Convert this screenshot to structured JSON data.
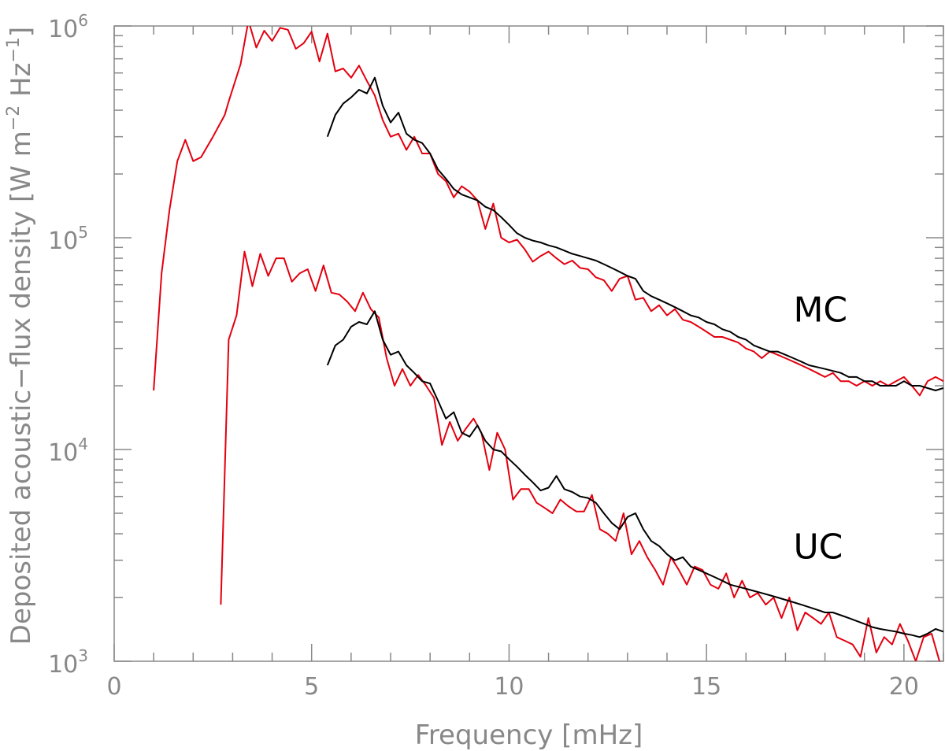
{
  "chart_data": {
    "type": "line",
    "title": "",
    "xlabel": "Frequency [mHz]",
    "ylabel_parts": [
      "Deposited acoustic−flux density [W m",
      "−2",
      " Hz",
      "−1",
      "]"
    ],
    "xlim": [
      0,
      21
    ],
    "ylim": [
      1000,
      1000000
    ],
    "yscale": "log",
    "grid": false,
    "x_ticks": [
      0,
      5,
      10,
      15,
      20
    ],
    "x_tick_labels": [
      "0",
      "5",
      "10",
      "15",
      "20"
    ],
    "y_ticks": [
      1000,
      10000,
      100000,
      1000000
    ],
    "y_tick_labels": [
      {
        "base": "10",
        "exp": "3"
      },
      {
        "base": "10",
        "exp": "4"
      },
      {
        "base": "10",
        "exp": "5"
      },
      {
        "base": "10",
        "exp": "6"
      }
    ],
    "annotations": [
      {
        "text": "MC",
        "x": 17.2,
        "y": 46000
      },
      {
        "text": "UC",
        "x": 17.2,
        "y": 3500
      }
    ],
    "colors": {
      "red": "#e3000f",
      "black": "#000000"
    },
    "series": [
      {
        "color": "#e3000f",
        "x": [
          1.0,
          1.2,
          1.4,
          1.6,
          1.8,
          2.0,
          2.2,
          2.5,
          2.8,
          2.9,
          3.2,
          3.4,
          3.6,
          3.8,
          4.0,
          4.2,
          4.4,
          4.6,
          4.8,
          5.0,
          5.2,
          5.4,
          5.6,
          5.8,
          6.0,
          6.2,
          6.4,
          6.6,
          6.8,
          7.0,
          7.2,
          7.4,
          7.6,
          7.8,
          8.0,
          8.2,
          8.4,
          8.6,
          8.8,
          9.0,
          9.2,
          9.4,
          9.6,
          9.8,
          10.0,
          10.2,
          10.4,
          10.6,
          10.8,
          11.0,
          11.2,
          11.4,
          11.6,
          11.8,
          12.0,
          12.2,
          12.4,
          12.6,
          12.8,
          13.0,
          13.2,
          13.4,
          13.6,
          13.8,
          14.0,
          14.2,
          14.4,
          14.6,
          14.8,
          15.0,
          15.2,
          15.4,
          15.6,
          15.8,
          16.0,
          16.2,
          16.4,
          16.6,
          16.8,
          17.0,
          17.2,
          17.4,
          17.6,
          17.8,
          18.0,
          18.2,
          18.4,
          18.6,
          18.8,
          19.0,
          19.2,
          19.4,
          19.6,
          19.8,
          20.0,
          20.2,
          20.4,
          20.6,
          20.8,
          21.0
        ],
        "values": [
          19000,
          68000,
          135000,
          230000,
          290000,
          230000,
          240000,
          300000,
          380000,
          440000,
          660000,
          1060000,
          790000,
          950000,
          850000,
          980000,
          960000,
          780000,
          830000,
          940000,
          680000,
          920000,
          610000,
          630000,
          570000,
          650000,
          550000,
          470000,
          360000,
          300000,
          310000,
          260000,
          300000,
          250000,
          250000,
          200000,
          185000,
          155000,
          175000,
          165000,
          150000,
          110000,
          145000,
          100000,
          95000,
          98000,
          88000,
          77000,
          82000,
          86000,
          80000,
          75000,
          78000,
          72000,
          71000,
          65000,
          63000,
          56000,
          64000,
          66000,
          51000,
          52000,
          45000,
          48000,
          43000,
          46000,
          41000,
          40000,
          38000,
          36000,
          34000,
          34000,
          33000,
          32000,
          30000,
          29000,
          27000,
          29000,
          28000,
          27000,
          26000,
          25000,
          24000,
          23000,
          22000,
          23000,
          21000,
          21000,
          20000,
          21000,
          20000,
          21000,
          20000,
          21000,
          22000,
          20000,
          18000,
          21000,
          22000,
          21000
        ]
      },
      {
        "color": "#000000",
        "x": [
          5.4,
          5.6,
          5.8,
          6.0,
          6.2,
          6.4,
          6.6,
          6.8,
          7.0,
          7.2,
          7.4,
          7.6,
          7.8,
          8.0,
          8.2,
          8.4,
          8.6,
          8.8,
          9.0,
          9.2,
          9.4,
          9.6,
          9.8,
          10.0,
          10.2,
          10.4,
          10.6,
          10.8,
          11.0,
          11.2,
          11.4,
          11.6,
          11.8,
          12.0,
          12.2,
          12.4,
          12.6,
          12.8,
          13.0,
          13.2,
          13.4,
          13.6,
          13.8,
          14.0,
          14.2,
          14.4,
          14.6,
          14.8,
          15.0,
          15.2,
          15.4,
          15.6,
          15.8,
          16.0,
          16.2,
          16.4,
          16.6,
          16.8,
          17.0,
          17.2,
          17.4,
          17.6,
          17.8,
          18.0,
          18.2,
          18.4,
          18.6,
          18.8,
          19.0,
          19.2,
          19.4,
          19.6,
          19.8,
          20.0,
          20.2,
          20.4,
          20.6,
          20.8,
          21.0
        ],
        "values": [
          300000,
          380000,
          430000,
          460000,
          500000,
          480000,
          570000,
          420000,
          350000,
          390000,
          310000,
          290000,
          280000,
          250000,
          210000,
          190000,
          170000,
          160000,
          155000,
          150000,
          140000,
          135000,
          125000,
          115000,
          105000,
          100000,
          97000,
          95000,
          92000,
          90000,
          87000,
          84000,
          82000,
          80000,
          78000,
          75000,
          72000,
          69000,
          66000,
          64000,
          56000,
          53000,
          51000,
          49000,
          47000,
          45000,
          43000,
          42000,
          40000,
          39000,
          37000,
          36000,
          34000,
          33000,
          31000,
          30000,
          29000,
          29000,
          28000,
          27000,
          26000,
          25000,
          24500,
          24000,
          23500,
          23000,
          22000,
          22000,
          21000,
          21000,
          20000,
          20000,
          20000,
          21000,
          20000,
          20000,
          19500,
          19000,
          19500
        ]
      },
      {
        "color": "#e3000f",
        "x": [
          2.7,
          2.9,
          3.1,
          3.3,
          3.5,
          3.7,
          3.9,
          4.1,
          4.3,
          4.5,
          4.7,
          4.9,
          5.1,
          5.3,
          5.5,
          5.7,
          5.9,
          6.1,
          6.3,
          6.5,
          6.7,
          6.9,
          7.1,
          7.3,
          7.5,
          7.7,
          7.9,
          8.1,
          8.3,
          8.5,
          8.7,
          8.9,
          9.1,
          9.3,
          9.5,
          9.7,
          9.9,
          10.1,
          10.3,
          10.5,
          10.7,
          10.9,
          11.1,
          11.3,
          11.5,
          11.7,
          11.9,
          12.1,
          12.3,
          12.5,
          12.7,
          12.9,
          13.1,
          13.3,
          13.5,
          13.7,
          13.9,
          14.1,
          14.3,
          14.5,
          14.7,
          14.9,
          15.1,
          15.3,
          15.5,
          15.7,
          15.9,
          16.1,
          16.3,
          16.5,
          16.7,
          16.9,
          17.1,
          17.3,
          17.5,
          17.7,
          17.9,
          18.1,
          18.3,
          18.5,
          18.7,
          18.9,
          19.1,
          19.3,
          19.5,
          19.7,
          19.9,
          20.1,
          20.3,
          20.5,
          20.7,
          20.9
        ],
        "values": [
          1850,
          33000,
          43000,
          86000,
          59000,
          84000,
          66000,
          80000,
          80000,
          62000,
          68000,
          71000,
          56000,
          74000,
          55000,
          54000,
          50000,
          45000,
          55000,
          46000,
          42000,
          27000,
          20000,
          24000,
          20000,
          22500,
          20000,
          17500,
          10500,
          13500,
          11000,
          12500,
          14000,
          12000,
          8000,
          12000,
          10000,
          5800,
          6500,
          6500,
          5600,
          5300,
          5000,
          5800,
          5400,
          5100,
          5100,
          6100,
          4200,
          4000,
          3700,
          5000,
          3200,
          3700,
          3100,
          2700,
          2300,
          3100,
          2700,
          2300,
          2800,
          2700,
          2300,
          2200,
          2600,
          2000,
          2400,
          2000,
          2100,
          1850,
          2000,
          1600,
          2000,
          1400,
          1700,
          1600,
          1500,
          1700,
          1300,
          1250,
          1200,
          1050,
          1600,
          1100,
          1300,
          1200,
          1500,
          1250,
          1000,
          1300,
          1350,
          1000
        ]
      },
      {
        "color": "#000000",
        "x": [
          5.4,
          5.6,
          5.8,
          6.0,
          6.2,
          6.4,
          6.6,
          6.8,
          7.0,
          7.2,
          7.4,
          7.6,
          7.8,
          8.0,
          8.2,
          8.4,
          8.6,
          8.8,
          9.0,
          9.2,
          9.4,
          9.6,
          9.8,
          10.0,
          10.2,
          10.4,
          10.6,
          10.8,
          11.0,
          11.2,
          11.4,
          11.6,
          11.8,
          12.0,
          12.2,
          12.4,
          12.6,
          12.8,
          13.0,
          13.2,
          13.4,
          13.6,
          13.8,
          14.0,
          14.2,
          14.4,
          14.6,
          14.8,
          15.0,
          15.2,
          15.4,
          15.6,
          15.8,
          16.0,
          16.2,
          16.4,
          16.6,
          16.8,
          17.0,
          17.2,
          17.4,
          17.6,
          17.8,
          18.0,
          18.2,
          18.4,
          18.6,
          18.8,
          19.0,
          19.2,
          19.4,
          19.6,
          19.8,
          20.0,
          20.2,
          20.4,
          20.6,
          20.8,
          21.0
        ],
        "values": [
          25000,
          31000,
          33000,
          38000,
          40000,
          39000,
          45000,
          33000,
          28000,
          29000,
          25000,
          23000,
          21000,
          20500,
          17000,
          14000,
          15000,
          12000,
          11500,
          13000,
          11000,
          10000,
          9800,
          9000,
          8300,
          7600,
          7000,
          6400,
          6600,
          7500,
          6500,
          6300,
          6000,
          5900,
          5600,
          5000,
          4500,
          4200,
          4800,
          5000,
          4200,
          3700,
          3500,
          3200,
          3000,
          3100,
          2800,
          2700,
          2600,
          2500,
          2400,
          2300,
          2250,
          2200,
          2150,
          2100,
          2050,
          2000,
          1950,
          1900,
          1850,
          1800,
          1750,
          1700,
          1700,
          1650,
          1600,
          1550,
          1500,
          1450,
          1420,
          1400,
          1380,
          1350,
          1330,
          1300,
          1350,
          1420,
          1380
        ]
      }
    ]
  }
}
